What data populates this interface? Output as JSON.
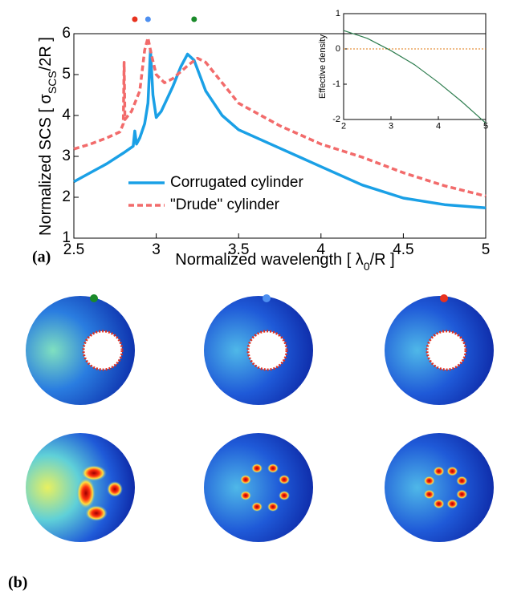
{
  "chart_data": [
    {
      "type": "line",
      "xlabel": {
        "before": "Normalized wavelength [ λ",
        "sub": "0",
        "after": "/R ]"
      },
      "ylabel": {
        "before": "Normalized SCS [ σ",
        "sub": "SCS",
        "after": "/2R ]"
      },
      "panel_label": "(a)",
      "xlim": [
        2.5,
        5
      ],
      "ylim": [
        1,
        6
      ],
      "xticks": [
        2.5,
        3,
        3.5,
        4,
        4.5,
        5
      ],
      "yticks": [
        1,
        2,
        3,
        4,
        5,
        6
      ],
      "series": [
        {
          "name": "Corrugated cylinder",
          "color": "#1aa0e6",
          "dash": false,
          "x": [
            2.5,
            2.6,
            2.7,
            2.8,
            2.86,
            2.87,
            2.88,
            2.9,
            2.93,
            2.95,
            2.965,
            2.98,
            3.0,
            3.03,
            3.1,
            3.15,
            3.19,
            3.23,
            3.3,
            3.4,
            3.5,
            3.75,
            4.0,
            4.25,
            4.5,
            4.75,
            5.0
          ],
          "values": [
            2.38,
            2.6,
            2.82,
            3.08,
            3.25,
            3.62,
            3.3,
            3.45,
            3.8,
            4.3,
            5.6,
            4.5,
            3.95,
            4.1,
            4.7,
            5.2,
            5.5,
            5.35,
            4.6,
            4.0,
            3.65,
            3.2,
            2.75,
            2.3,
            1.98,
            1.82,
            1.74
          ]
        },
        {
          "name": "\"Drude\" cylinder",
          "color": "#f26b6b",
          "dash": true,
          "x": [
            2.5,
            2.6,
            2.7,
            2.78,
            2.8,
            2.805,
            2.81,
            2.85,
            2.9,
            2.93,
            2.95,
            2.97,
            3.0,
            3.05,
            3.1,
            3.2,
            3.25,
            3.3,
            3.4,
            3.5,
            3.75,
            4.0,
            4.25,
            4.5,
            4.75,
            5.0
          ],
          "values": [
            3.18,
            3.3,
            3.45,
            3.6,
            3.8,
            5.3,
            3.9,
            4.1,
            4.6,
            5.6,
            5.9,
            5.5,
            5.0,
            4.8,
            4.9,
            5.25,
            5.4,
            5.3,
            4.8,
            4.3,
            3.75,
            3.3,
            2.98,
            2.6,
            2.28,
            2.03
          ]
        }
      ],
      "markers": [
        {
          "x": 2.87,
          "color": "#e8321e"
        },
        {
          "x": 2.95,
          "color": "#4d8ff0"
        },
        {
          "x": 3.23,
          "color": "#1a8a2a"
        }
      ]
    },
    {
      "type": "line",
      "ylabel": "Effective density",
      "xlim": [
        2,
        5
      ],
      "ylim": [
        -2,
        1
      ],
      "xticks": [
        2,
        3,
        4,
        5
      ],
      "yticks": [
        -2,
        -1,
        0,
        1
      ],
      "reference_y": 0,
      "reference_color": "#e07a10",
      "series": [
        {
          "color": "#2e7d4f",
          "dash": false,
          "x": [
            2,
            2.5,
            3,
            3.5,
            4,
            4.5,
            5
          ],
          "values": [
            0.52,
            0.3,
            -0.05,
            -0.45,
            -0.95,
            -1.5,
            -2.1
          ]
        }
      ]
    }
  ],
  "panel_b_label": "(b)"
}
